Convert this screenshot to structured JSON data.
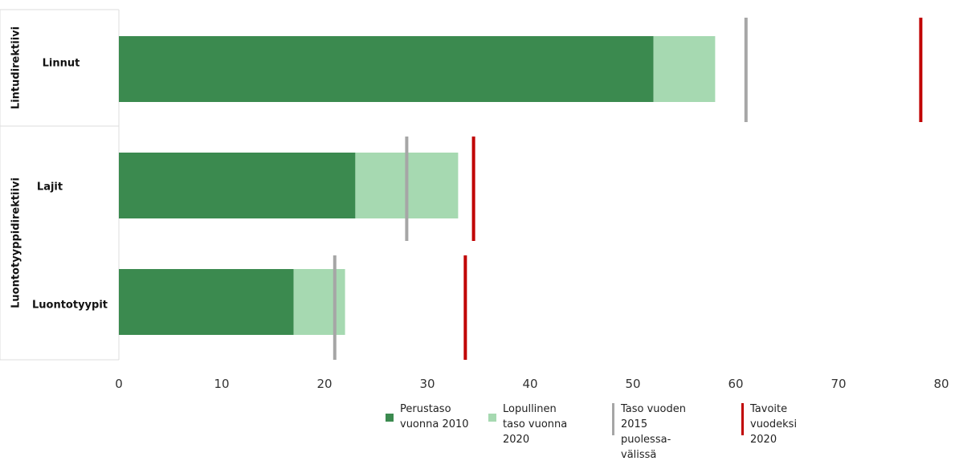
{
  "chart_data": {
    "type": "bar",
    "orientation": "horizontal",
    "stacked": true,
    "groups": [
      {
        "label": "Lintudirektiivi",
        "categories": [
          "Linnut"
        ]
      },
      {
        "label": "Luontotyyppidirektiivi",
        "categories": [
          "Lajit",
          "Luontotyypit"
        ]
      }
    ],
    "categories": [
      "Linnut",
      "Lajit",
      "Luontotyypit"
    ],
    "series": [
      {
        "name": "Perustaso vuonna 2010",
        "values": [
          52,
          23,
          17
        ],
        "color": "#3b8a4f"
      },
      {
        "name": "Lopullinen taso vuonna 2020",
        "values": [
          6,
          10,
          5
        ],
        "color": "#a6d9b1"
      }
    ],
    "markers": [
      {
        "name": "Taso vuoden 2015 puolessa-välissä",
        "values": [
          61,
          28,
          21
        ],
        "color": "#a6a6a6"
      },
      {
        "name": "Tavoite vuodeksi 2020",
        "values": [
          78,
          34.5,
          33.7
        ],
        "color": "#c00000"
      }
    ],
    "xlim": [
      0,
      80
    ],
    "xticks": [
      0,
      10,
      20,
      30,
      40,
      50,
      60,
      70,
      80
    ],
    "legend_position": "bottom",
    "grid": false,
    "title": "",
    "xlabel": "",
    "ylabel": ""
  },
  "legend": [
    {
      "text": "Perustaso\nvuonna 2010",
      "kind": "box",
      "color": "#3b8a4f"
    },
    {
      "text": "Lopullinen\ntaso vuonna\n2020",
      "kind": "box",
      "color": "#a6d9b1"
    },
    {
      "text": "Taso vuoden\n2015\npuolessa-\nvälissä",
      "kind": "line",
      "color": "#a6a6a6"
    },
    {
      "text": "Tavoite\nvuodeksi\n2020",
      "kind": "line",
      "color": "#c00000"
    }
  ]
}
